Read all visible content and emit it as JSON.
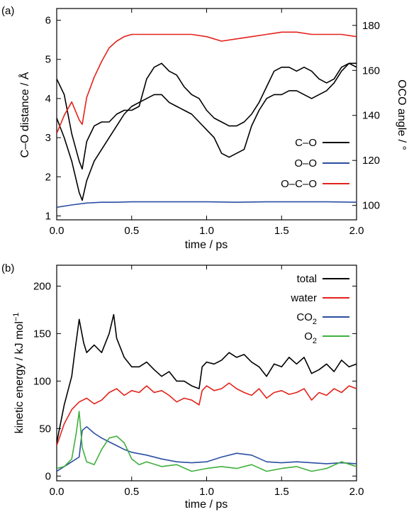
{
  "chart_data": [
    {
      "type": "line",
      "panel_label": "(a)",
      "xlabel": "time / ps",
      "ylabel": "C–O distance / Å",
      "y2label": "OCO angle / °",
      "xlim": [
        0,
        2.0
      ],
      "ylim": [
        0.9,
        6.3
      ],
      "y2lim": [
        93.6,
        187.5
      ],
      "xticks": [
        "0.0",
        "0.5",
        "1.0",
        "1.5",
        "2.0"
      ],
      "xtick_values": [
        0,
        0.5,
        1.0,
        1.5,
        2.0
      ],
      "yticks": [
        "1",
        "2",
        "3",
        "4",
        "5",
        "6"
      ],
      "ytick_values": [
        1,
        2,
        3,
        4,
        5,
        6
      ],
      "y2ticks": [
        "100",
        "120",
        "140",
        "160",
        "180"
      ],
      "y2tick_values": [
        100,
        120,
        140,
        160,
        180
      ],
      "grid": false,
      "legend_position": "center-right",
      "series": [
        {
          "name": "C–O",
          "color": "#000000",
          "axis": "left",
          "x": [
            0,
            0.05,
            0.1,
            0.15,
            0.17,
            0.2,
            0.25,
            0.3,
            0.35,
            0.4,
            0.45,
            0.5,
            0.55,
            0.6,
            0.65,
            0.7,
            0.75,
            0.8,
            0.85,
            0.9,
            0.95,
            1.0,
            1.05,
            1.1,
            1.15,
            1.2,
            1.25,
            1.3,
            1.35,
            1.4,
            1.45,
            1.5,
            1.55,
            1.6,
            1.65,
            1.7,
            1.75,
            1.8,
            1.85,
            1.9,
            1.95,
            2.0
          ],
          "y": [
            4.5,
            4.1,
            3.1,
            2.4,
            2.2,
            2.9,
            3.3,
            3.4,
            3.4,
            3.6,
            3.7,
            3.7,
            3.8,
            4.5,
            4.8,
            4.9,
            4.7,
            4.6,
            4.3,
            4.1,
            4.0,
            3.7,
            3.5,
            3.4,
            3.3,
            3.3,
            3.4,
            3.6,
            3.9,
            4.3,
            4.7,
            4.8,
            4.8,
            4.7,
            4.8,
            4.7,
            4.5,
            4.4,
            4.5,
            4.8,
            4.9,
            4.8
          ]
        },
        {
          "name": "C–O",
          "color": "#000000",
          "axis": "left",
          "legend": false,
          "x": [
            0,
            0.05,
            0.1,
            0.15,
            0.17,
            0.2,
            0.25,
            0.3,
            0.35,
            0.4,
            0.45,
            0.5,
            0.55,
            0.6,
            0.65,
            0.7,
            0.75,
            0.8,
            0.85,
            0.9,
            0.95,
            1.0,
            1.05,
            1.1,
            1.15,
            1.2,
            1.25,
            1.3,
            1.35,
            1.4,
            1.45,
            1.5,
            1.55,
            1.6,
            1.65,
            1.7,
            1.75,
            1.8,
            1.85,
            1.9,
            1.95,
            2.0
          ],
          "y": [
            3.5,
            3.0,
            2.4,
            1.6,
            1.4,
            1.9,
            2.4,
            2.7,
            3.0,
            3.3,
            3.6,
            3.8,
            3.9,
            4.0,
            4.1,
            4.1,
            3.9,
            3.8,
            3.7,
            3.6,
            3.4,
            3.2,
            3.0,
            2.6,
            2.5,
            2.6,
            2.7,
            3.3,
            3.7,
            4.0,
            4.1,
            4.1,
            4.2,
            4.2,
            4.1,
            4.0,
            4.1,
            4.2,
            4.4,
            4.7,
            4.9,
            4.9
          ]
        },
        {
          "name": "O–O",
          "color": "#2b4ea2",
          "axis": "left",
          "x": [
            0,
            0.1,
            0.2,
            0.3,
            0.4,
            0.5,
            0.6,
            0.8,
            1.0,
            1.2,
            1.4,
            1.6,
            1.8,
            2.0
          ],
          "y": [
            1.22,
            1.28,
            1.33,
            1.35,
            1.35,
            1.36,
            1.36,
            1.36,
            1.36,
            1.35,
            1.36,
            1.36,
            1.36,
            1.35
          ]
        },
        {
          "name": "O–C–O",
          "color": "#e3231b",
          "axis": "right",
          "x": [
            0,
            0.05,
            0.1,
            0.15,
            0.17,
            0.2,
            0.25,
            0.3,
            0.35,
            0.4,
            0.45,
            0.5,
            0.6,
            0.7,
            0.8,
            0.9,
            1.0,
            1.1,
            1.2,
            1.3,
            1.4,
            1.5,
            1.6,
            1.7,
            1.8,
            1.9,
            2.0
          ],
          "y": [
            132,
            140,
            146,
            138,
            136,
            148,
            157,
            164,
            170,
            173,
            175,
            176,
            176,
            176,
            176,
            176,
            175,
            173,
            174,
            175,
            176,
            177,
            177,
            176,
            176,
            176,
            175
          ]
        }
      ]
    },
    {
      "type": "line",
      "panel_label": "(b)",
      "xlabel": "time / ps",
      "ylabel": "kinetic energy / kJ mol",
      "ylabel_sup": "−1",
      "xlim": [
        0,
        2.0
      ],
      "ylim": [
        -5,
        222
      ],
      "xticks": [
        "0.0",
        "0.5",
        "1.0",
        "1.5",
        "2.0"
      ],
      "xtick_values": [
        0,
        0.5,
        1.0,
        1.5,
        2.0
      ],
      "yticks": [
        "0",
        "50",
        "100",
        "150",
        "200"
      ],
      "ytick_values": [
        0,
        50,
        100,
        150,
        200
      ],
      "grid": false,
      "legend_position": "top-right",
      "series": [
        {
          "name": "total",
          "color": "#000000",
          "x": [
            0,
            0.05,
            0.1,
            0.12,
            0.15,
            0.18,
            0.2,
            0.25,
            0.3,
            0.35,
            0.38,
            0.4,
            0.45,
            0.5,
            0.55,
            0.6,
            0.65,
            0.7,
            0.75,
            0.8,
            0.85,
            0.9,
            0.95,
            0.97,
            1.0,
            1.05,
            1.1,
            1.15,
            1.2,
            1.25,
            1.3,
            1.35,
            1.4,
            1.45,
            1.5,
            1.55,
            1.6,
            1.65,
            1.7,
            1.75,
            1.8,
            1.85,
            1.9,
            1.95,
            2.0
          ],
          "y": [
            35,
            75,
            105,
            130,
            165,
            140,
            130,
            138,
            130,
            150,
            170,
            145,
            125,
            115,
            115,
            120,
            112,
            105,
            110,
            100,
            100,
            95,
            92,
            115,
            120,
            118,
            122,
            130,
            125,
            128,
            120,
            115,
            105,
            118,
            115,
            125,
            118,
            125,
            108,
            112,
            118,
            110,
            122,
            115,
            118
          ]
        },
        {
          "name": "water",
          "color": "#e3231b",
          "x": [
            0,
            0.05,
            0.1,
            0.15,
            0.2,
            0.25,
            0.3,
            0.35,
            0.4,
            0.45,
            0.5,
            0.55,
            0.6,
            0.65,
            0.7,
            0.75,
            0.8,
            0.85,
            0.9,
            0.95,
            0.97,
            1.0,
            1.05,
            1.1,
            1.15,
            1.2,
            1.25,
            1.3,
            1.35,
            1.4,
            1.45,
            1.5,
            1.55,
            1.6,
            1.65,
            1.7,
            1.75,
            1.8,
            1.85,
            1.9,
            1.95,
            2.0
          ],
          "y": [
            32,
            55,
            70,
            78,
            82,
            76,
            80,
            88,
            92,
            85,
            90,
            88,
            95,
            88,
            90,
            85,
            78,
            82,
            80,
            75,
            90,
            95,
            90,
            92,
            98,
            92,
            88,
            85,
            92,
            82,
            88,
            90,
            86,
            88,
            92,
            80,
            88,
            85,
            92,
            88,
            95,
            92
          ]
        },
        {
          "name": "CO2",
          "label_main": "CO",
          "label_sub": "2",
          "color": "#2b4ea2",
          "x": [
            0,
            0.05,
            0.1,
            0.15,
            0.17,
            0.2,
            0.25,
            0.3,
            0.35,
            0.4,
            0.45,
            0.5,
            0.6,
            0.7,
            0.8,
            0.9,
            1.0,
            1.1,
            1.2,
            1.3,
            1.4,
            1.5,
            1.6,
            1.7,
            1.8,
            1.9,
            2.0
          ],
          "y": [
            5,
            10,
            15,
            20,
            48,
            52,
            45,
            40,
            36,
            32,
            28,
            25,
            22,
            18,
            15,
            14,
            15,
            20,
            24,
            22,
            15,
            14,
            15,
            14,
            13,
            14,
            13
          ]
        },
        {
          "name": "O2",
          "label_main": "O",
          "label_sub": "2",
          "color": "#3fb03c",
          "x": [
            0,
            0.05,
            0.1,
            0.13,
            0.15,
            0.17,
            0.2,
            0.25,
            0.3,
            0.35,
            0.4,
            0.45,
            0.5,
            0.55,
            0.6,
            0.7,
            0.8,
            0.9,
            1.0,
            1.1,
            1.2,
            1.3,
            1.4,
            1.5,
            1.6,
            1.7,
            1.8,
            1.9,
            2.0
          ],
          "y": [
            8,
            10,
            18,
            45,
            68,
            30,
            15,
            12,
            28,
            40,
            42,
            35,
            18,
            12,
            15,
            10,
            12,
            5,
            8,
            10,
            8,
            12,
            5,
            8,
            10,
            5,
            8,
            15,
            10
          ]
        }
      ]
    }
  ]
}
